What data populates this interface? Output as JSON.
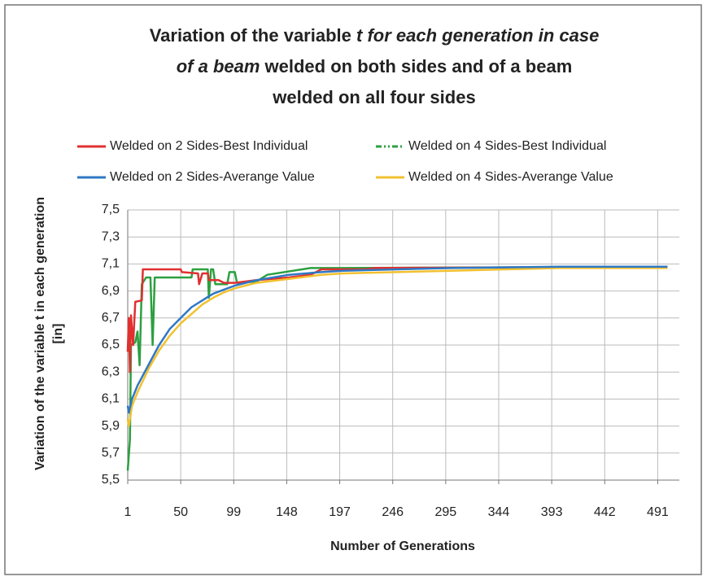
{
  "chart_data": {
    "type": "line",
    "title_lines": [
      [
        {
          "text": "Variation of the variable ",
          "italic": false
        },
        {
          "text": "t for each generation in case",
          "italic": true
        }
      ],
      [
        {
          "text": "of a beam",
          "italic": true
        },
        {
          "text": " welded on both sides and of a beam",
          "italic": false
        }
      ],
      [
        {
          "text": "welded on all four sides",
          "italic": false
        }
      ]
    ],
    "ylabel_lines": [
      "Variation of the variable t in each generation",
      "[in]"
    ],
    "xlabel": "Number of Generations",
    "xlim": [
      1,
      511
    ],
    "xticks": [
      1,
      50,
      99,
      148,
      197,
      246,
      295,
      344,
      393,
      442,
      491
    ],
    "ylim": [
      5.5,
      7.5
    ],
    "yticks": [
      {
        "value": 5.5,
        "label": "5,5"
      },
      {
        "value": 5.7,
        "label": "5,7"
      },
      {
        "value": 5.9,
        "label": "5,9"
      },
      {
        "value": 6.1,
        "label": "6,1"
      },
      {
        "value": 6.3,
        "label": "6,3"
      },
      {
        "value": 6.5,
        "label": "6,5"
      },
      {
        "value": 6.7,
        "label": "6,7"
      },
      {
        "value": 6.9,
        "label": "6,9"
      },
      {
        "value": 7.1,
        "label": "7,1"
      },
      {
        "value": 7.3,
        "label": "7,3"
      },
      {
        "value": 7.5,
        "label": "7,5"
      }
    ],
    "grid": true,
    "series": [
      {
        "name": "Welded on 2 Sides-Best Individual",
        "color": "#e03030",
        "x": [
          1,
          2,
          3,
          4,
          6,
          8,
          14,
          15,
          50,
          51,
          66,
          67,
          70,
          75,
          76,
          85,
          90,
          100,
          120,
          150,
          170,
          180,
          220,
          230,
          500
        ],
        "values": [
          6.45,
          6.7,
          6.3,
          6.72,
          6.5,
          6.82,
          6.83,
          7.06,
          7.06,
          7.04,
          7.03,
          6.95,
          7.03,
          7.03,
          6.98,
          6.98,
          6.96,
          6.96,
          6.98,
          7.0,
          7.02,
          7.06,
          7.06,
          7.07,
          7.08
        ]
      },
      {
        "name": "Welded on 4 Sides-Best Individual",
        "color": "#2ca040",
        "legend_dash": "7 3 2 3 2 3",
        "x": [
          1,
          3,
          4,
          8,
          10,
          12,
          14,
          18,
          22,
          24,
          26,
          60,
          61,
          75,
          76,
          78,
          80,
          82,
          93,
          95,
          100,
          102,
          120,
          130,
          170,
          200,
          500
        ],
        "values": [
          5.57,
          5.8,
          6.5,
          6.52,
          6.6,
          6.35,
          6.95,
          7.0,
          7.0,
          6.5,
          7.0,
          7.0,
          7.06,
          7.06,
          6.85,
          7.06,
          7.06,
          6.95,
          6.95,
          7.04,
          7.04,
          6.96,
          6.97,
          7.02,
          7.07,
          7.07,
          7.08
        ]
      },
      {
        "name": "Welded on 2 Sides-Averange Value",
        "color": "#2f78c4",
        "x": [
          1,
          2,
          5,
          10,
          20,
          30,
          40,
          50,
          60,
          70,
          80,
          90,
          100,
          120,
          150,
          180,
          200,
          250,
          300,
          400,
          500
        ],
        "values": [
          6.05,
          6.0,
          6.1,
          6.2,
          6.35,
          6.5,
          6.62,
          6.7,
          6.78,
          6.83,
          6.88,
          6.91,
          6.94,
          6.98,
          7.02,
          7.04,
          7.05,
          7.06,
          7.07,
          7.08,
          7.08
        ]
      },
      {
        "name": "Welded on 4 Sides-Averange Value",
        "color": "#f2c130",
        "x": [
          1,
          2,
          5,
          10,
          20,
          30,
          40,
          50,
          60,
          70,
          80,
          90,
          100,
          120,
          150,
          180,
          200,
          250,
          300,
          400,
          500
        ],
        "values": [
          5.95,
          5.9,
          6.05,
          6.15,
          6.32,
          6.46,
          6.57,
          6.66,
          6.73,
          6.8,
          6.85,
          6.89,
          6.92,
          6.96,
          6.99,
          7.02,
          7.03,
          7.04,
          7.05,
          7.07,
          7.07
        ]
      }
    ]
  }
}
